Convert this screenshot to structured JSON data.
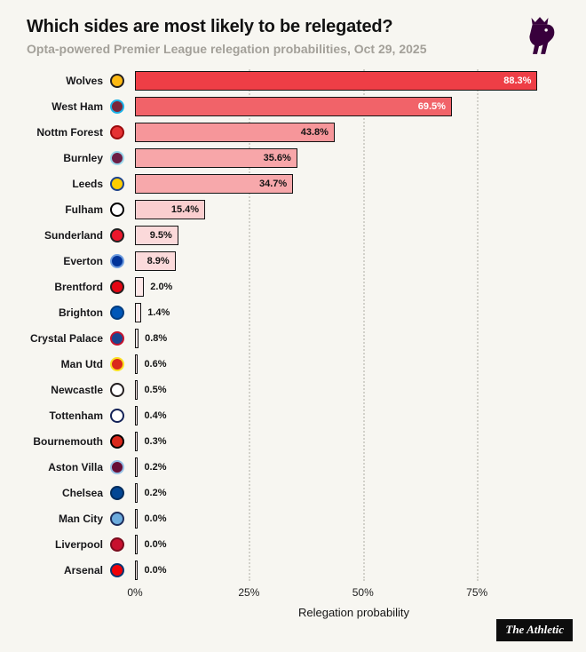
{
  "header": {
    "title": "Which sides are most likely to be relegated?",
    "subtitle": "Opta-powered Premier League relegation probabilities, Oct 29, 2025"
  },
  "logo": {
    "name": "Premier League lion crest",
    "color": "#38003c"
  },
  "chart_data": {
    "type": "bar",
    "orientation": "horizontal",
    "title": "Which sides are most likely to be relegated?",
    "xlabel": "Relegation probability",
    "x_ticks": [
      "0%",
      "25%",
      "50%",
      "75%"
    ],
    "x_tick_values": [
      0,
      25,
      50,
      75
    ],
    "xlim": [
      0,
      96
    ],
    "grid": "dotted-vertical",
    "teams": [
      {
        "name": "Wolves",
        "value": 88.3,
        "label": "88.3%",
        "bar_color": "#ee3e46",
        "crest_bg": "#fdb913",
        "crest_border": "#231f20"
      },
      {
        "name": "West Ham",
        "value": 69.5,
        "label": "69.5%",
        "bar_color": "#f16369",
        "crest_bg": "#7a263a",
        "crest_border": "#1bb1e7"
      },
      {
        "name": "Nottm Forest",
        "value": 43.8,
        "label": "43.8%",
        "bar_color": "#f6969a",
        "crest_bg": "#e53233",
        "crest_border": "#9b0a0c"
      },
      {
        "name": "Burnley",
        "value": 35.6,
        "label": "35.6%",
        "bar_color": "#f7a6a9",
        "crest_bg": "#6c1d45",
        "crest_border": "#99d6ea"
      },
      {
        "name": "Leeds",
        "value": 34.7,
        "label": "34.7%",
        "bar_color": "#f7a8ab",
        "crest_bg": "#ffcd00",
        "crest_border": "#1d428a"
      },
      {
        "name": "Fulham",
        "value": 15.4,
        "label": "15.4%",
        "bar_color": "#facecf",
        "crest_bg": "#ffffff",
        "crest_border": "#000000"
      },
      {
        "name": "Sunderland",
        "value": 9.5,
        "label": "9.5%",
        "bar_color": "#fbd9da",
        "crest_bg": "#eb172b",
        "crest_border": "#211e1f"
      },
      {
        "name": "Everton",
        "value": 8.9,
        "label": "8.9%",
        "bar_color": "#fbdadb",
        "crest_bg": "#003399",
        "crest_border": "#6f9ddf"
      },
      {
        "name": "Brentford",
        "value": 2.0,
        "label": "2.0%",
        "bar_color": "#fde8e8",
        "crest_bg": "#e30613",
        "crest_border": "#231f20"
      },
      {
        "name": "Brighton",
        "value": 1.4,
        "label": "1.4%",
        "bar_color": "#fde9e9",
        "crest_bg": "#0057b8",
        "crest_border": "#003c7f"
      },
      {
        "name": "Crystal Palace",
        "value": 0.8,
        "label": "0.8%",
        "bar_color": "#fdeaea",
        "crest_bg": "#1b458f",
        "crest_border": "#c4122e"
      },
      {
        "name": "Man Utd",
        "value": 0.6,
        "label": "0.6%",
        "bar_color": "#fdeaeb",
        "crest_bg": "#da291c",
        "crest_border": "#fbe122"
      },
      {
        "name": "Newcastle",
        "value": 0.5,
        "label": "0.5%",
        "bar_color": "#fdebeb",
        "crest_bg": "#ffffff",
        "crest_border": "#241f20"
      },
      {
        "name": "Tottenham",
        "value": 0.4,
        "label": "0.4%",
        "bar_color": "#fdebeb",
        "crest_bg": "#ffffff",
        "crest_border": "#132257"
      },
      {
        "name": "Bournemouth",
        "value": 0.3,
        "label": "0.3%",
        "bar_color": "#fdebeb",
        "crest_bg": "#da291c",
        "crest_border": "#000000"
      },
      {
        "name": "Aston Villa",
        "value": 0.2,
        "label": "0.2%",
        "bar_color": "#fdebeb",
        "crest_bg": "#670e36",
        "crest_border": "#95bfe5"
      },
      {
        "name": "Chelsea",
        "value": 0.2,
        "label": "0.2%",
        "bar_color": "#fdebeb",
        "crest_bg": "#034694",
        "crest_border": "#032c5c"
      },
      {
        "name": "Man City",
        "value": 0.0,
        "label": "0.0%",
        "bar_color": "#fdecec",
        "crest_bg": "#6cabdd",
        "crest_border": "#1c2c5b"
      },
      {
        "name": "Liverpool",
        "value": 0.0,
        "label": "0.0%",
        "bar_color": "#fdecec",
        "crest_bg": "#c8102e",
        "crest_border": "#7a0c1d"
      },
      {
        "name": "Arsenal",
        "value": 0.0,
        "label": "0.0%",
        "bar_color": "#fdecec",
        "crest_bg": "#ef0107",
        "crest_border": "#063672"
      }
    ],
    "label_inside_threshold": 5,
    "label_white_threshold": 60
  },
  "footer": {
    "brand": "The Athletic"
  }
}
